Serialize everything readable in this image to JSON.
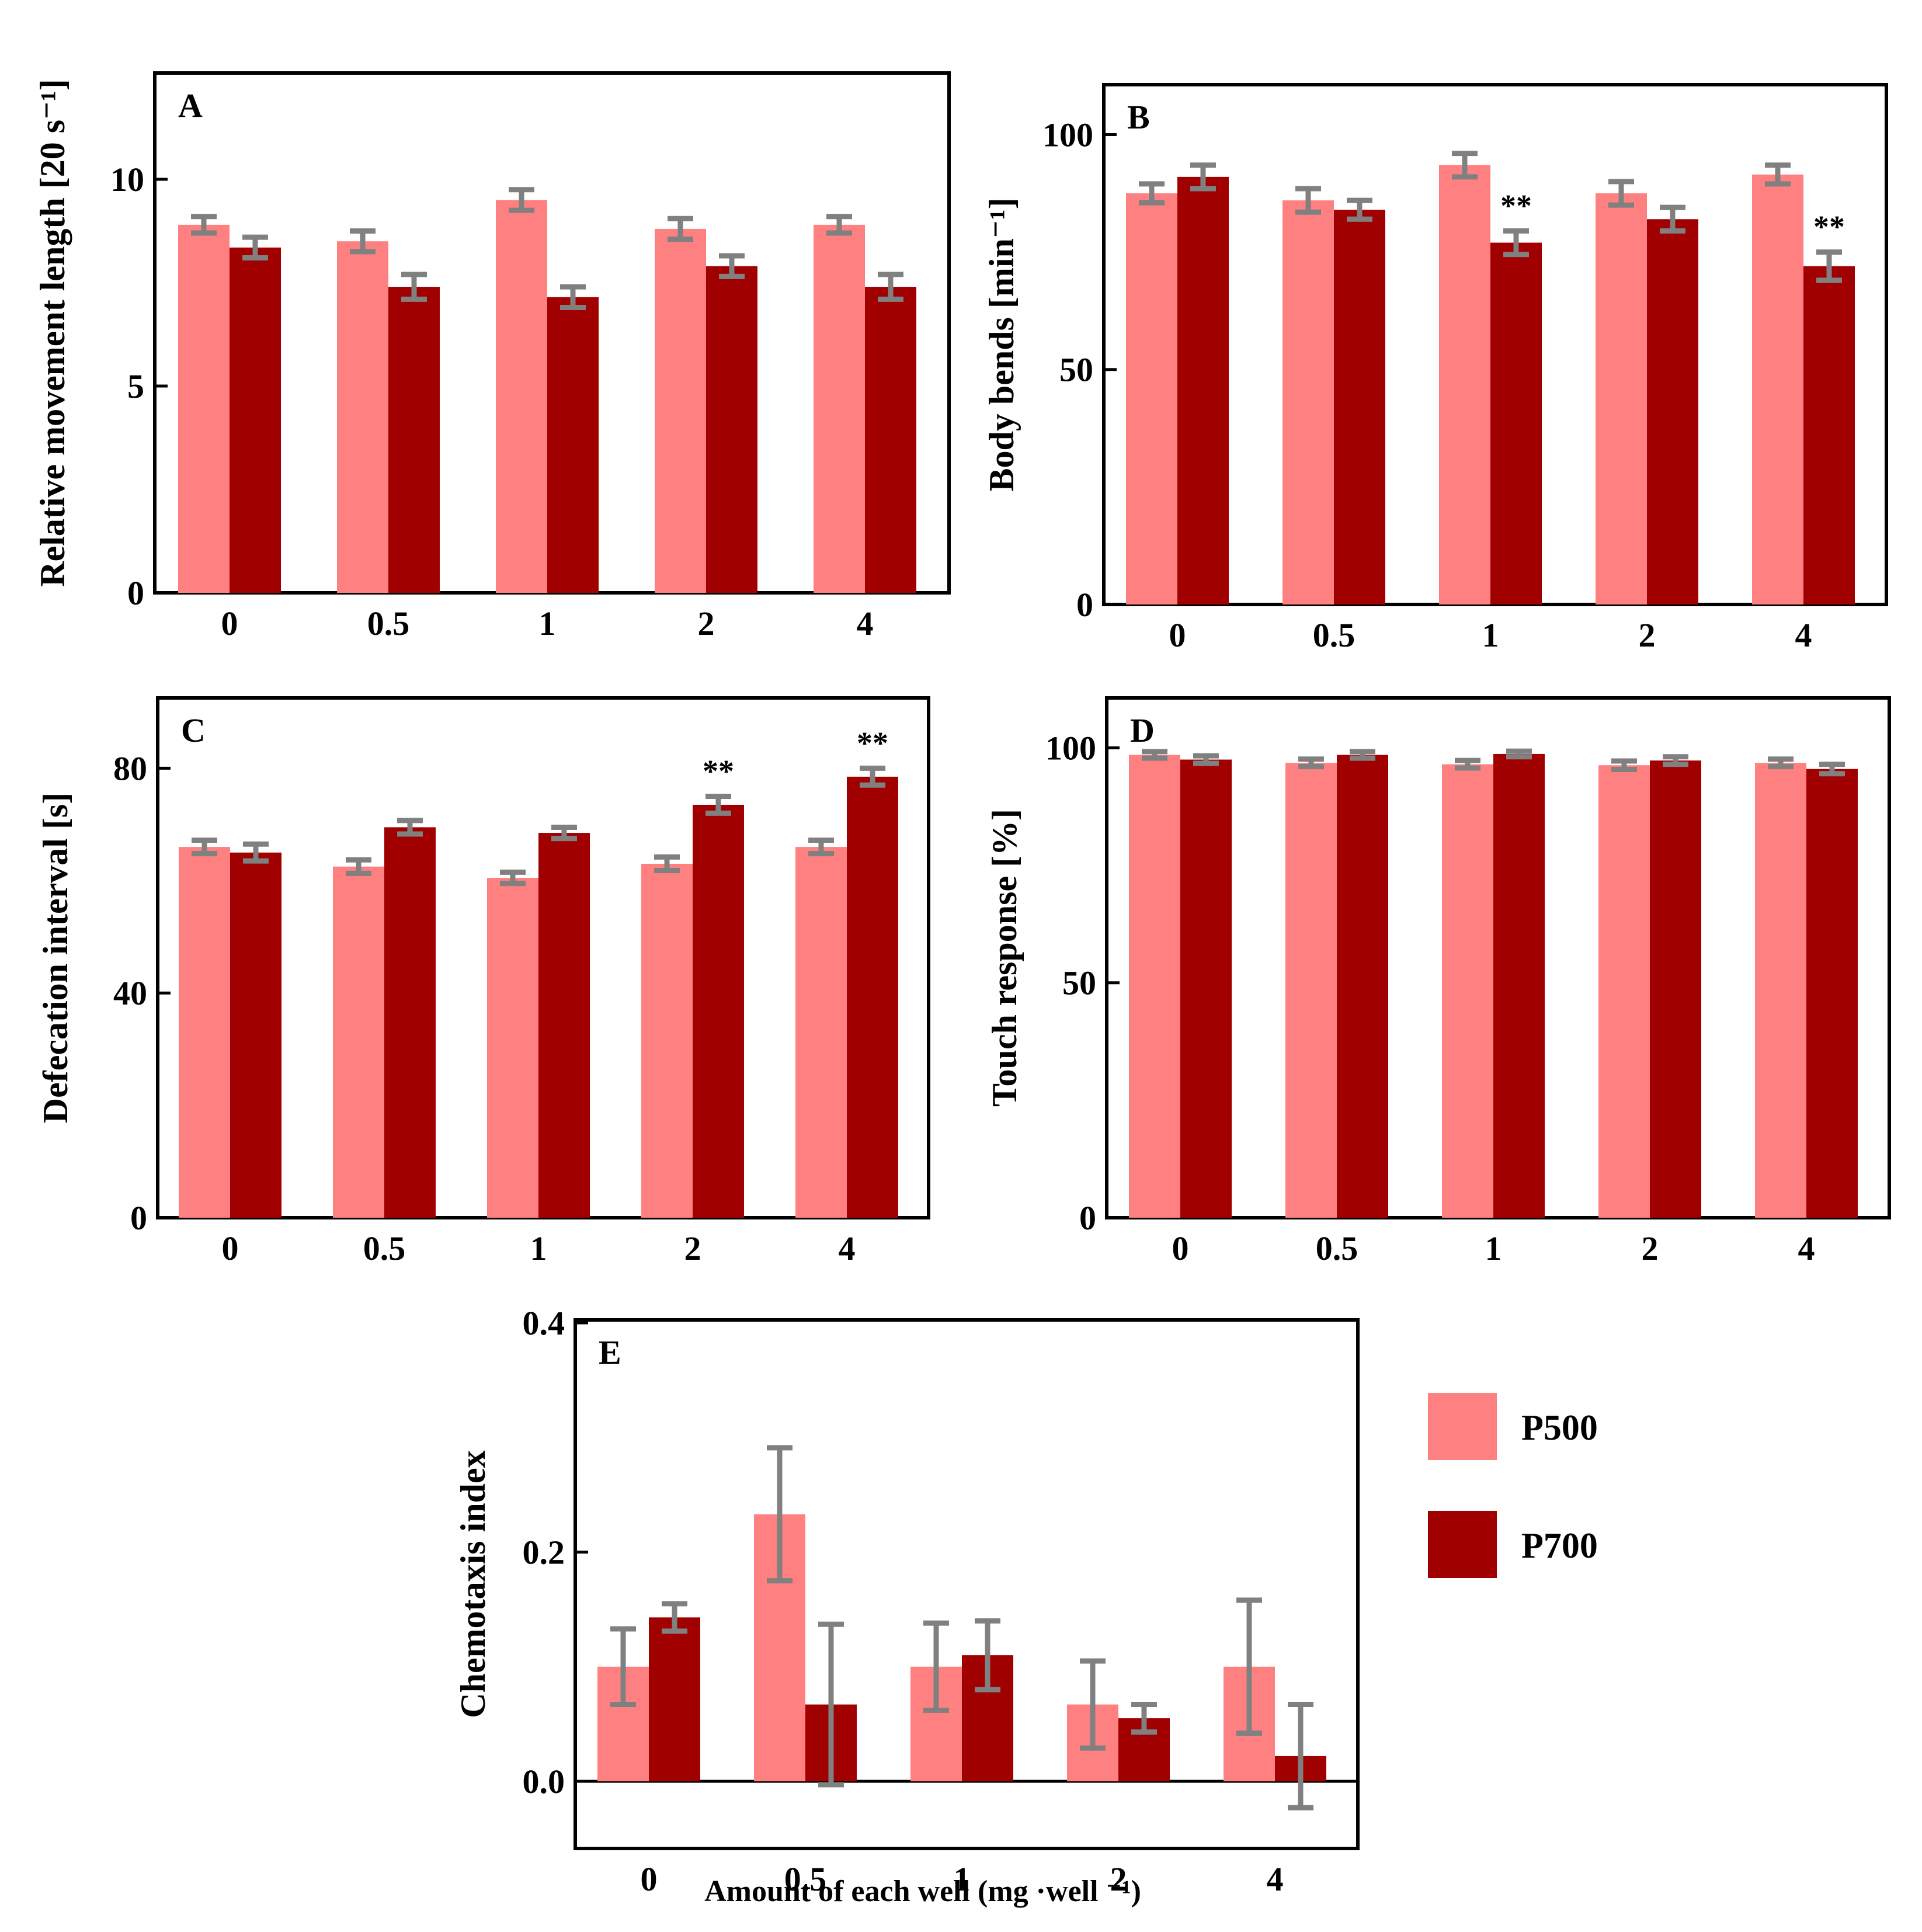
{
  "colors": {
    "P500": "#ff8080",
    "P700": "#a00000",
    "error": "#808080"
  },
  "legend": {
    "items": [
      "P500",
      "P700"
    ],
    "placement": "right of panel E"
  },
  "xlabel": "Amount of each well (mg ·well ⁻¹)",
  "chart_data": [
    {
      "type": "bar",
      "panel": "A",
      "ylabel": "Relative movement length [20 s⁻¹]",
      "ylim": [
        0,
        12.5
      ],
      "yticks": [
        0,
        5,
        10
      ],
      "categories": [
        "0",
        "0.5",
        "1",
        "2",
        "4"
      ],
      "series": [
        {
          "name": "P500",
          "values": [
            8.9,
            8.5,
            9.5,
            8.8,
            8.9
          ],
          "errors": [
            0.2,
            0.25,
            0.25,
            0.25,
            0.2
          ]
        },
        {
          "name": "P700",
          "values": [
            8.35,
            7.4,
            7.15,
            7.9,
            7.4
          ],
          "errors": [
            0.25,
            0.3,
            0.25,
            0.25,
            0.3
          ]
        }
      ],
      "annotations": [
        "",
        "",
        "",
        "",
        ""
      ]
    },
    {
      "type": "bar",
      "panel": "B",
      "ylabel": "Body bends [min⁻¹]",
      "ylim": [
        0,
        110
      ],
      "yticks": [
        0,
        50,
        100
      ],
      "categories": [
        "0",
        "0.5",
        "1",
        "2",
        "4"
      ],
      "series": [
        {
          "name": "P500",
          "values": [
            87.5,
            86,
            93.5,
            87.5,
            91.5
          ],
          "errors": [
            2,
            2.5,
            2.5,
            2.5,
            2
          ]
        },
        {
          "name": "P700",
          "values": [
            91,
            84,
            77,
            82,
            72
          ],
          "errors": [
            2.5,
            2,
            2.5,
            2.5,
            3
          ]
        }
      ],
      "annotations": [
        "",
        "",
        "**",
        "",
        "**"
      ]
    },
    {
      "type": "bar",
      "panel": "C",
      "ylabel": "Defecation interval [s]",
      "ylim": [
        0,
        92
      ],
      "yticks": [
        0,
        40,
        80
      ],
      "categories": [
        "0",
        "0.5",
        "1",
        "2",
        "4"
      ],
      "series": [
        {
          "name": "P500",
          "values": [
            66,
            62.5,
            60.5,
            63,
            66
          ],
          "errors": [
            1.2,
            1.2,
            1,
            1.2,
            1.2
          ]
        },
        {
          "name": "P700",
          "values": [
            65,
            69.5,
            68.5,
            73.5,
            78.5
          ],
          "errors": [
            1.5,
            1.2,
            1,
            1.5,
            1.5
          ]
        }
      ],
      "annotations": [
        "",
        "",
        "",
        "**",
        "**"
      ]
    },
    {
      "type": "bar",
      "panel": "D",
      "ylabel": "Touch response [%]",
      "ylim": [
        0,
        110
      ],
      "yticks": [
        0,
        50,
        100
      ],
      "categories": [
        "0",
        "0.5",
        "1",
        "2",
        "4"
      ],
      "series": [
        {
          "name": "P500",
          "values": [
            98.5,
            96.8,
            96.5,
            96.3,
            96.8
          ],
          "errors": [
            0.7,
            0.8,
            0.8,
            0.9,
            0.8
          ]
        },
        {
          "name": "P700",
          "values": [
            97.5,
            98.5,
            98.7,
            97.3,
            95.5
          ],
          "errors": [
            0.8,
            0.7,
            0.6,
            0.8,
            1
          ]
        }
      ],
      "annotations": [
        "",
        "",
        "",
        "",
        ""
      ]
    },
    {
      "type": "bar",
      "panel": "E",
      "ylabel": "Chemotaxis index",
      "ylim": [
        -0.04,
        0.4
      ],
      "yticks": [
        "0.0",
        "0.2",
        "0.4"
      ],
      "ytick_values": [
        0,
        0.2,
        0.4
      ],
      "categories": [
        "0",
        "0.5",
        "1",
        "2",
        "4"
      ],
      "series": [
        {
          "name": "P500",
          "values": [
            0.1,
            0.233,
            0.1,
            0.067,
            0.1
          ],
          "errors": [
            0.033,
            0.058,
            0.038,
            0.038,
            0.058
          ]
        },
        {
          "name": "P700",
          "values": [
            0.143,
            0.067,
            0.11,
            0.055,
            0.022
          ],
          "errors": [
            0.012,
            0.07,
            0.03,
            0.012,
            0.045
          ]
        }
      ],
      "annotations": [
        "",
        "",
        "",
        "",
        ""
      ]
    }
  ]
}
